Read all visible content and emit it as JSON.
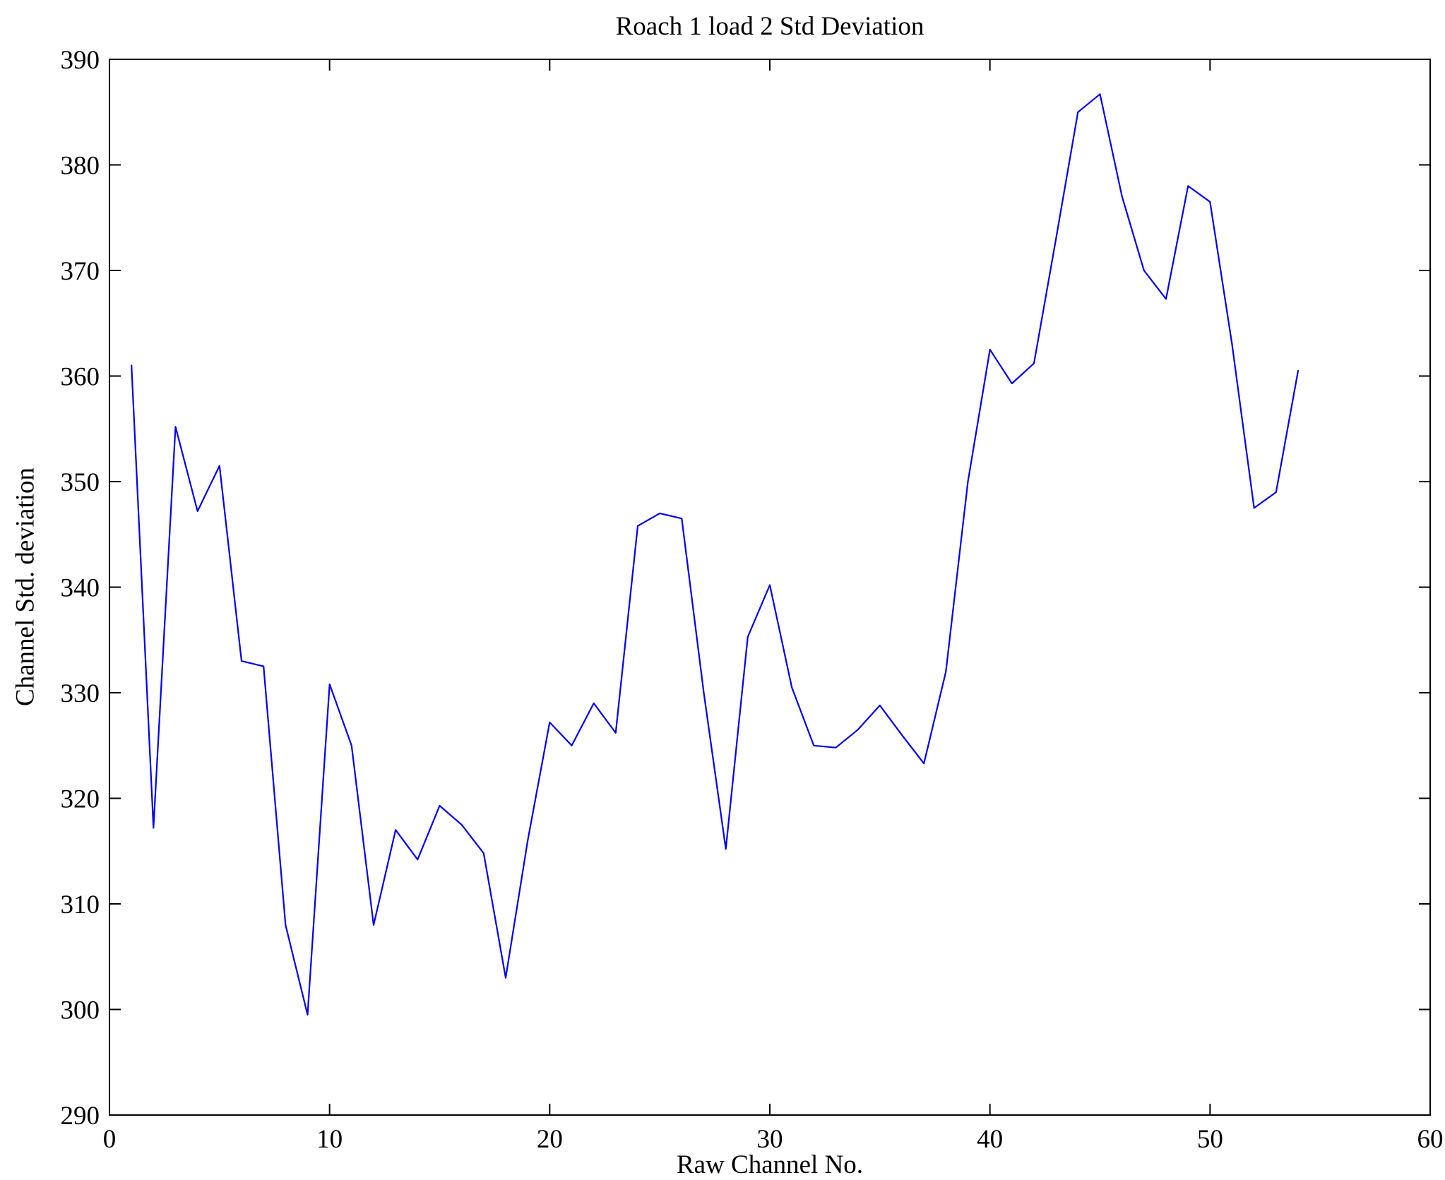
{
  "chart_data": {
    "type": "line",
    "title": "Roach 1 load 2 Std Deviation",
    "xlabel": "Raw Channel No.",
    "ylabel": "Channel Std. deviation",
    "xlim": [
      0,
      60
    ],
    "ylim": [
      290,
      390
    ],
    "xticks": [
      0,
      10,
      20,
      30,
      40,
      50,
      60
    ],
    "yticks": [
      290,
      300,
      310,
      320,
      330,
      340,
      350,
      360,
      370,
      380,
      390
    ],
    "grid": false,
    "legend_position": "none",
    "line_color": "#0000ee",
    "axes_color": "#000000",
    "background_color": "#ffffff",
    "x": [
      1,
      2,
      3,
      4,
      5,
      6,
      7,
      8,
      9,
      10,
      11,
      12,
      13,
      14,
      15,
      16,
      17,
      18,
      19,
      20,
      21,
      22,
      23,
      24,
      25,
      26,
      27,
      28,
      29,
      30,
      31,
      32,
      33,
      34,
      35,
      36,
      37,
      38,
      39,
      40,
      41,
      42,
      43,
      44,
      45,
      46,
      47,
      48,
      49,
      50,
      51,
      52,
      53,
      54
    ],
    "y": [
      361.0,
      317.2,
      355.2,
      347.2,
      351.5,
      333.0,
      332.5,
      308.0,
      299.5,
      330.8,
      325.0,
      308.0,
      317.0,
      314.2,
      319.3,
      317.5,
      314.8,
      303.0,
      316.0,
      327.2,
      325.0,
      329.0,
      326.2,
      345.8,
      347.0,
      346.5,
      330.0,
      315.2,
      335.3,
      340.2,
      330.5,
      325.0,
      324.8,
      326.5,
      328.8,
      326.0,
      323.3,
      332.0,
      350.0,
      362.5,
      359.3,
      361.2,
      373.0,
      385.0,
      386.7,
      377.0,
      370.0,
      367.3,
      378.0,
      376.5,
      363.0,
      347.5,
      349.0,
      360.5
    ]
  }
}
